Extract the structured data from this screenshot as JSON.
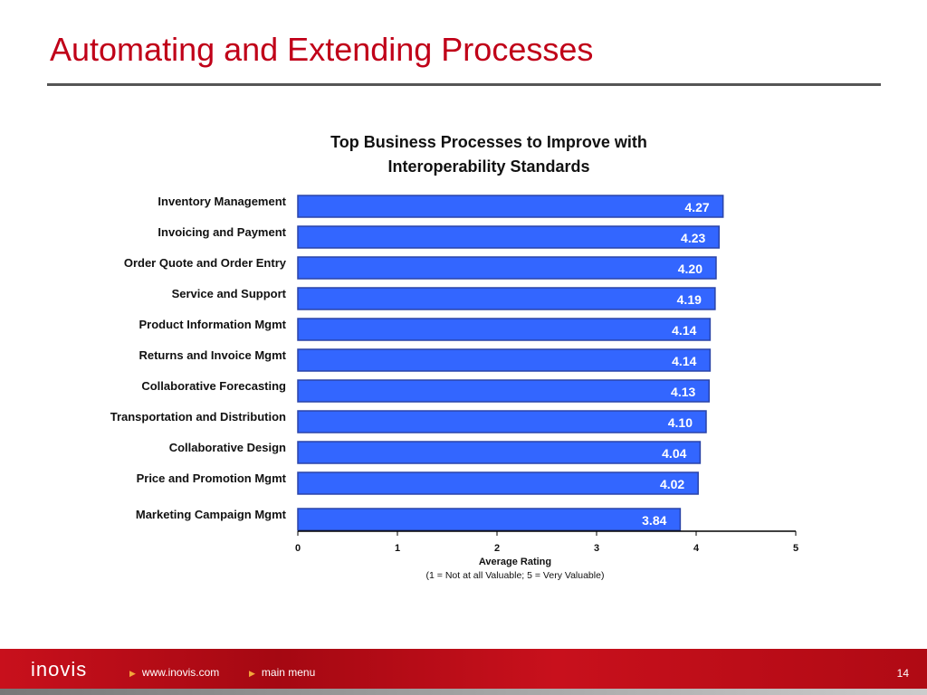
{
  "slide": {
    "title": "Automating and Extending Processes",
    "page_number": "14"
  },
  "footer": {
    "logo": "inovis",
    "links": [
      "www.inovis.com",
      "main menu"
    ]
  },
  "colors": {
    "bar": "#3366ff",
    "bar_border": "#2a44a8",
    "title": "#c00018"
  },
  "chart_data": {
    "type": "bar",
    "orientation": "horizontal",
    "title": [
      "Top Business Processes to Improve with",
      "Interoperability Standards"
    ],
    "categories": [
      "Inventory Management",
      "Invoicing and Payment",
      "Order Quote and Order Entry",
      "Service and Support",
      "Product Information Mgmt",
      "Returns and Invoice Mgmt",
      "Collaborative Forecasting",
      "Transportation and Distribution",
      "Collaborative Design",
      "Price and Promotion Mgmt",
      "Marketing Campaign Mgmt"
    ],
    "values": [
      4.27,
      4.23,
      4.2,
      4.19,
      4.14,
      4.14,
      4.13,
      4.1,
      4.04,
      4.02,
      3.84
    ],
    "labels": [
      "4.27",
      "4.23",
      "4.20",
      "4.19",
      "4.14",
      "4.14",
      "4.13",
      "4.10",
      "4.04",
      "4.02",
      "3.84"
    ],
    "xlabel": "Average Rating",
    "xlabel_note": "(1 = Not at all Valuable;  5 = Very Valuable)",
    "xlim": [
      0,
      5
    ],
    "xticks": [
      "0",
      "1",
      "2",
      "3",
      "4",
      "5"
    ],
    "grid": false
  }
}
